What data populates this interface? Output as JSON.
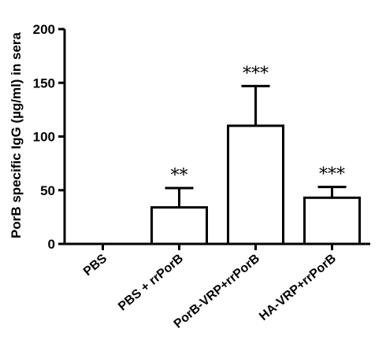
{
  "chart_data": {
    "type": "bar",
    "ylabel": "PorB specific IgG (µg/ml) in sera",
    "xlabel": "",
    "ylim": [
      0,
      200
    ],
    "yticks": [
      0,
      50,
      100,
      150,
      200
    ],
    "categories": [
      "PBS",
      "PBS + rrPorB",
      "PorB-VRP+rrPorB",
      "HA-VRP+rrPorB"
    ],
    "values": [
      0,
      34,
      110,
      43
    ],
    "error_upper": [
      0,
      52,
      147,
      53
    ],
    "significance": [
      "",
      "**",
      "***",
      "***"
    ],
    "bar_fill": "#ffffff",
    "bar_stroke": "#000000",
    "grid": false
  }
}
